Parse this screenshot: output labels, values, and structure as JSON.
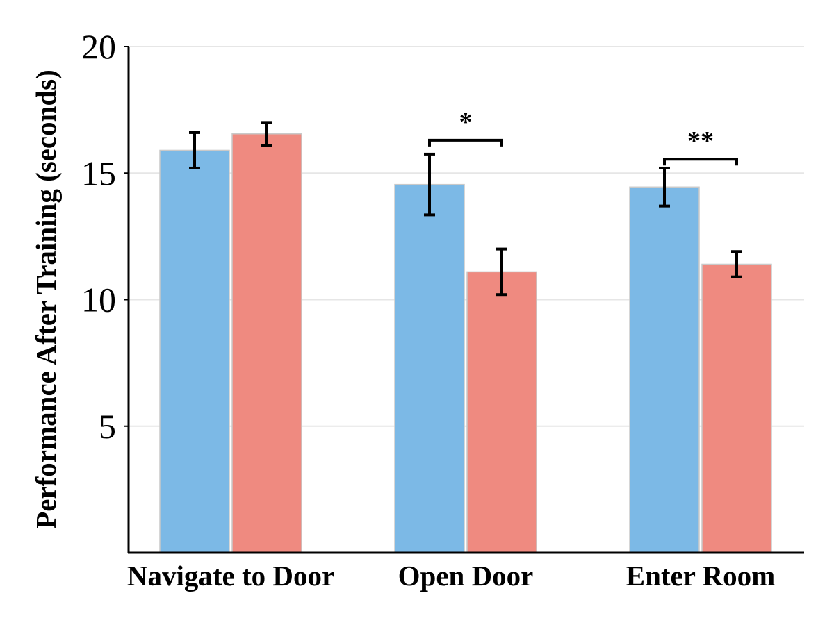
{
  "chart_data": {
    "type": "bar",
    "title": "",
    "xlabel": "",
    "ylabel": "Performance After Training (seconds)",
    "ylim": [
      0,
      20
    ],
    "yticks": [
      5,
      10,
      15,
      20
    ],
    "grid": true,
    "categories": [
      "Navigate to Door",
      "Open Door",
      "Enter Room"
    ],
    "series": [
      {
        "color": "#7cb9e6",
        "values": [
          15.9,
          14.55,
          14.45
        ],
        "errors": [
          0.7,
          1.2,
          0.75
        ]
      },
      {
        "color": "#ef8a80",
        "values": [
          16.55,
          11.1,
          11.4
        ],
        "errors": [
          0.45,
          0.9,
          0.5
        ]
      }
    ],
    "significance": [
      {
        "category_index": 1,
        "label": "*",
        "y": 16.3
      },
      {
        "category_index": 2,
        "label": "**",
        "y": 15.55
      }
    ]
  }
}
